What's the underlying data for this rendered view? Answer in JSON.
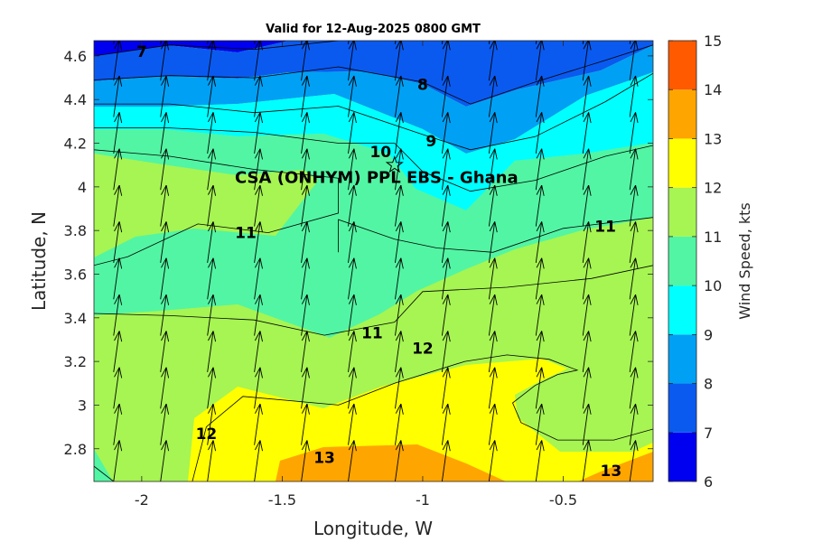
{
  "chart_data": {
    "type": "contour",
    "title": "Valid for 12-Aug-2025 0800 GMT",
    "xlabel": "Longitude, W",
    "ylabel": "Latitude, N",
    "xlim": [
      -2.17,
      -0.18
    ],
    "ylim": [
      2.65,
      4.67
    ],
    "x_ticks": [
      -2,
      -1.5,
      -1,
      -0.5
    ],
    "y_ticks": [
      2.8,
      3,
      3.2,
      3.4,
      3.6,
      3.8,
      4,
      4.2,
      4.4,
      4.6
    ],
    "grid": false,
    "colorbar": {
      "label": "Wind Speed, kts",
      "position": "right",
      "min": 6,
      "max": 15,
      "ticks": [
        6,
        7,
        8,
        9,
        10,
        11,
        12,
        13,
        14,
        15
      ],
      "colors": [
        "#0000f0",
        "#0a5af0",
        "#00a0f5",
        "#00ffff",
        "#52f5a3",
        "#a6f552",
        "#ffff00",
        "#ffa500",
        "#ff5a00"
      ]
    },
    "site_marker": {
      "label": "CSA (ONHYM) PPL EBS  - Ghana",
      "lon": -1.1,
      "lat": 4.1,
      "symbol": "star"
    },
    "wind_field": {
      "description_unit": "arrows point toward NNE (southerly/south-south-westerly flow)",
      "direction_deg_from_north": 8,
      "lon_spacing": 0.167,
      "lat_spacing": 0.167
    },
    "filled_bands": [
      {
        "level_min": 13,
        "level_max": 14,
        "label": "13",
        "polygon": [
          [
            -1.52,
            2.65
          ],
          [
            -1.5,
            2.73
          ],
          [
            -1.3,
            2.8
          ],
          [
            -1.05,
            2.8
          ],
          [
            -0.85,
            2.7
          ],
          [
            -0.78,
            2.65
          ]
        ]
      },
      {
        "level_min": 13,
        "level_max": 14,
        "label": "13",
        "polygon": [
          [
            -0.45,
            2.65
          ],
          [
            -0.35,
            2.7
          ],
          [
            -0.18,
            2.79
          ],
          [
            -0.18,
            2.65
          ]
        ]
      },
      {
        "level_min": 6,
        "level_max": 7,
        "label": "7",
        "polygon": [
          [
            -2.17,
            4.67
          ],
          [
            -2.17,
            4.6
          ],
          [
            -1.9,
            4.65
          ],
          [
            -1.6,
            4.63
          ],
          [
            -1.3,
            4.67
          ]
        ]
      }
    ],
    "contours": [
      {
        "level": 7,
        "label_at": [
          -2.0,
          4.62
        ],
        "points": [
          [
            -2.17,
            4.6
          ],
          [
            -1.9,
            4.65
          ],
          [
            -1.6,
            4.63
          ],
          [
            -1.3,
            4.67
          ]
        ]
      },
      {
        "level": 8,
        "label_at": [
          -1.0,
          4.47
        ],
        "points": [
          [
            -2.17,
            4.49
          ],
          [
            -1.9,
            4.51
          ],
          [
            -1.6,
            4.5
          ],
          [
            -1.3,
            4.55
          ],
          [
            -1.0,
            4.48
          ],
          [
            -0.83,
            4.38
          ],
          [
            -0.6,
            4.48
          ],
          [
            -0.35,
            4.58
          ],
          [
            -0.18,
            4.65
          ]
        ]
      },
      {
        "level": 9,
        "label_at": [
          -0.97,
          4.21
        ],
        "points": [
          [
            -2.17,
            4.38
          ],
          [
            -1.9,
            4.38
          ],
          [
            -1.6,
            4.34
          ],
          [
            -1.3,
            4.37
          ],
          [
            -1.0,
            4.24
          ],
          [
            -0.83,
            4.17
          ],
          [
            -0.6,
            4.23
          ],
          [
            -0.35,
            4.39
          ],
          [
            -0.18,
            4.52
          ]
        ]
      },
      {
        "level": 10,
        "label_at": [
          -1.15,
          4.16
        ],
        "points": [
          [
            -2.17,
            4.27
          ],
          [
            -1.9,
            4.27
          ],
          [
            -1.6,
            4.25
          ],
          [
            -1.3,
            4.2
          ],
          [
            -1.1,
            4.2
          ],
          [
            -1.0,
            4.07
          ],
          [
            -0.83,
            3.98
          ],
          [
            -0.6,
            4.03
          ],
          [
            -0.35,
            4.14
          ],
          [
            -0.18,
            4.19
          ]
        ]
      },
      {
        "level": 11,
        "label_at": [
          -1.63,
          3.79
        ],
        "points": [
          [
            -2.17,
            4.17
          ],
          [
            -1.9,
            4.14
          ],
          [
            -1.6,
            4.08
          ],
          [
            -1.3,
            4.04
          ],
          [
            -1.3,
            3.88
          ],
          [
            -1.55,
            3.79
          ],
          [
            -1.8,
            3.83
          ],
          [
            -2.05,
            3.68
          ],
          [
            -2.17,
            3.64
          ]
        ]
      },
      {
        "level": 11,
        "label_at": [
          -0.35,
          3.82
        ],
        "points": [
          [
            -0.18,
            3.86
          ],
          [
            -0.5,
            3.81
          ],
          [
            -0.75,
            3.7
          ],
          [
            -0.95,
            3.72
          ],
          [
            -1.1,
            3.76
          ],
          [
            -1.3,
            3.85
          ],
          [
            -1.3,
            3.7
          ]
        ]
      },
      {
        "level": 11,
        "label_at": [
          -1.18,
          3.33
        ],
        "points": [
          [
            -2.17,
            3.42
          ],
          [
            -1.9,
            3.41
          ],
          [
            -1.6,
            3.39
          ],
          [
            -1.35,
            3.32
          ],
          [
            -1.1,
            3.38
          ],
          [
            -1.0,
            3.52
          ],
          [
            -0.7,
            3.54
          ],
          [
            -0.4,
            3.58
          ],
          [
            -0.18,
            3.64
          ]
        ]
      },
      {
        "level": 12,
        "label_at": [
          -1.0,
          3.26
        ],
        "points": [
          [
            -2.17,
            2.72
          ],
          [
            -2.1,
            2.65
          ]
        ]
      },
      {
        "level": 12,
        "label_at": [
          -1.77,
          2.87
        ],
        "points": [
          [
            -1.82,
            2.65
          ],
          [
            -1.77,
            2.9
          ],
          [
            -1.64,
            3.04
          ],
          [
            -1.3,
            3.0
          ],
          [
            -1.1,
            3.1
          ],
          [
            -0.85,
            3.2
          ],
          [
            -0.7,
            3.23
          ],
          [
            -0.55,
            3.21
          ],
          [
            -0.45,
            3.16
          ],
          [
            -0.52,
            3.14
          ],
          [
            -0.6,
            3.09
          ],
          [
            -0.68,
            3.01
          ],
          [
            -0.65,
            2.92
          ],
          [
            -0.52,
            2.84
          ],
          [
            -0.32,
            2.84
          ],
          [
            -0.18,
            2.89
          ]
        ]
      }
    ]
  }
}
